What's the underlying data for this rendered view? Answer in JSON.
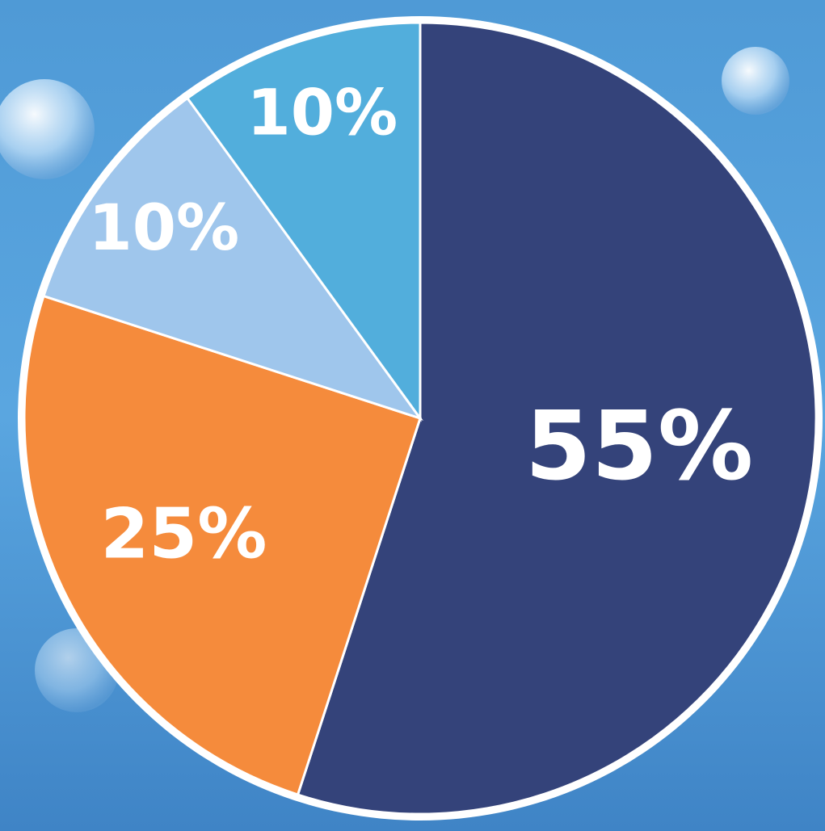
{
  "chart_data": {
    "type": "pie",
    "values": [
      55,
      25,
      10,
      10
    ],
    "value_labels": [
      "55%",
      "25%",
      "10%",
      "10%"
    ],
    "colors": [
      "#34437a",
      "#f58b3c",
      "#9fc6ec",
      "#52aedc"
    ],
    "start_angle": 0,
    "direction": "clockwise"
  }
}
